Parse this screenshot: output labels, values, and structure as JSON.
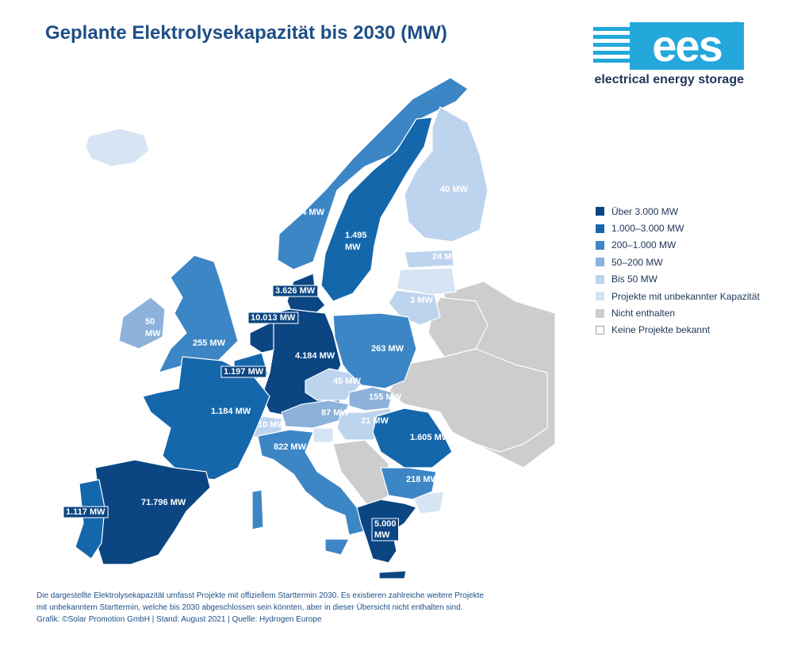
{
  "title": "Geplante Elektrolysekapazität bis 2030 (MW)",
  "logo": {
    "letters": "ees",
    "registered": "®",
    "tagline": "electrical energy storage",
    "color": "#24a8dc"
  },
  "legend": [
    {
      "label": "Über 3.000 MW",
      "color": "#0b4683"
    },
    {
      "label": "1.000–3.000 MW",
      "color": "#1567ab"
    },
    {
      "label": "200–1.000 MW",
      "color": "#3d86c6"
    },
    {
      "label": "50–200 MW",
      "color": "#8cb2dc"
    },
    {
      "label": "Bis 50 MW",
      "color": "#bdd4ef"
    },
    {
      "label": "Projekte mit unbekannter Kapazität",
      "color": "#d6e4f3"
    },
    {
      "label": "Nicht enthalten",
      "color": "#cdcdcd"
    },
    {
      "label": "Keine Projekte bekannt",
      "color": "#ffffff"
    }
  ],
  "countries": [
    {
      "name": "Iceland",
      "category": "Projekte mit unbekannter Kapazität"
    },
    {
      "name": "Norway",
      "category": "200–1.000 MW",
      "value": "964 MW"
    },
    {
      "name": "Sweden",
      "category": "1.000–3.000 MW",
      "value": "1.495 MW"
    },
    {
      "name": "Finland",
      "category": "Bis 50 MW",
      "value": "40 MW"
    },
    {
      "name": "Estonia",
      "category": "Bis 50 MW",
      "value": "24 MW"
    },
    {
      "name": "Latvia",
      "category": "Projekte mit unbekannter Kapazität"
    },
    {
      "name": "Lithuania",
      "category": "Bis 50 MW",
      "value": "3 MW"
    },
    {
      "name": "Denmark",
      "category": "Über 3.000 MW",
      "value": "3.626 MW"
    },
    {
      "name": "Ireland",
      "category": "50–200 MW",
      "value": "50 MW"
    },
    {
      "name": "United Kingdom",
      "category": "200–1.000 MW",
      "value": "255 MW"
    },
    {
      "name": "Netherlands",
      "category": "Über 3.000 MW",
      "value": "10.013 MW"
    },
    {
      "name": "Belgium",
      "category": "1.000–3.000 MW",
      "value": "1.197 MW"
    },
    {
      "name": "Germany",
      "category": "Über 3.000 MW",
      "value": "4.184 MW"
    },
    {
      "name": "Poland",
      "category": "200–1.000 MW",
      "value": "263 MW"
    },
    {
      "name": "Czechia",
      "category": "Bis 50 MW",
      "value": "45 MW"
    },
    {
      "name": "Slovakia",
      "category": "50–200 MW",
      "value": "155 MW"
    },
    {
      "name": "Austria",
      "category": "50–200 MW",
      "value": "87 MW"
    },
    {
      "name": "Hungary",
      "category": "Bis 50 MW",
      "value": "21 MW"
    },
    {
      "name": "Switzerland",
      "category": "Bis 50 MW",
      "value": "10 MW"
    },
    {
      "name": "France",
      "category": "1.000–3.000 MW",
      "value": "1.184 MW"
    },
    {
      "name": "Italy",
      "category": "200–1.000 MW",
      "value": "822 MW"
    },
    {
      "name": "Romania",
      "category": "1.000–3.000 MW",
      "value": "1.605 MW"
    },
    {
      "name": "Bulgaria",
      "category": "200–1.000 MW",
      "value": "218 MW"
    },
    {
      "name": "Spain",
      "category": "Über 3.000 MW",
      "value": "71.796 MW"
    },
    {
      "name": "Portugal",
      "category": "1.000–3.000 MW",
      "value": "1.117 MW"
    },
    {
      "name": "Greece",
      "category": "Über 3.000 MW",
      "value": "5.000 MW"
    },
    {
      "name": "Slovenia",
      "category": "Projekte mit unbekannter Kapazität"
    },
    {
      "name": "Turkey",
      "category": "Projekte mit unbekannter Kapazität"
    },
    {
      "name": "Russia",
      "category": "Nicht enthalten"
    },
    {
      "name": "Belarus",
      "category": "Nicht enthalten"
    },
    {
      "name": "Ukraine",
      "category": "Nicht enthalten"
    },
    {
      "name": "Western Balkans",
      "category": "Nicht enthalten"
    }
  ],
  "footer": {
    "line1": "Die dargestellte Elektrolysekapazität umfasst Projekte mit offiziellem Starttermin 2030. Es existieren zahlreiche weitere Projekte",
    "line2": "mit unbekanntem Starttermin, welche bis 2030 abgeschlossen sein könnten, aber in dieser Übersicht nicht enthalten sind.",
    "credit": "Grafik: ©Solar Promotion GmbH | Stand: August 2021 | Quelle: Hydrogen Europe"
  }
}
